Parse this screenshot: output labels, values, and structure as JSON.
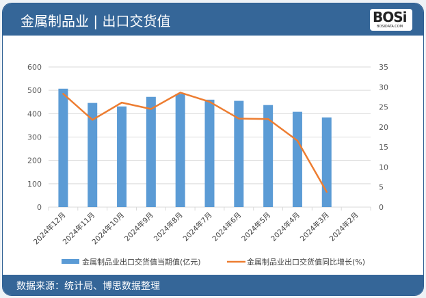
{
  "header": {
    "title": "金属制品业 | 出口交货值",
    "logo_text": "BOSI",
    "logo_sub": "BOSIDATA.COM"
  },
  "footer": {
    "source": "数据来源：统计局、博思数据整理"
  },
  "colors": {
    "header": "#356698",
    "bar": "#5b9bd5",
    "line": "#ed7d31"
  },
  "chart_data": {
    "type": "bar+line",
    "categories": [
      "2024年12月",
      "2024年11月",
      "2024年10月",
      "2024年9月",
      "2024年8月",
      "2024年7月",
      "2024年6月",
      "2024年5月",
      "2024年4月",
      "2024年3月",
      "2024年2月"
    ],
    "series": [
      {
        "name": "金属制品业出口交货值当期值(亿元)",
        "type": "bar",
        "axis": "left",
        "values": [
          507,
          446,
          431,
          472,
          485,
          460,
          455,
          437,
          408,
          384,
          null
        ]
      },
      {
        "name": "金属制品业出口交货值同比增长(%)",
        "type": "line",
        "axis": "right",
        "values": [
          28.3,
          21.8,
          26.1,
          24.5,
          28.6,
          26.3,
          22.1,
          22.0,
          16.6,
          3.8,
          null
        ]
      }
    ],
    "y_left": {
      "range": [
        0,
        600
      ],
      "ticks": [
        "0",
        "100",
        "200",
        "300",
        "400",
        "500",
        "600"
      ]
    },
    "y_right": {
      "range": [
        0,
        35
      ],
      "ticks": [
        "0",
        "5",
        "10",
        "15",
        "20",
        "25",
        "30",
        "35"
      ]
    },
    "grid": true,
    "legend": "bottom"
  }
}
